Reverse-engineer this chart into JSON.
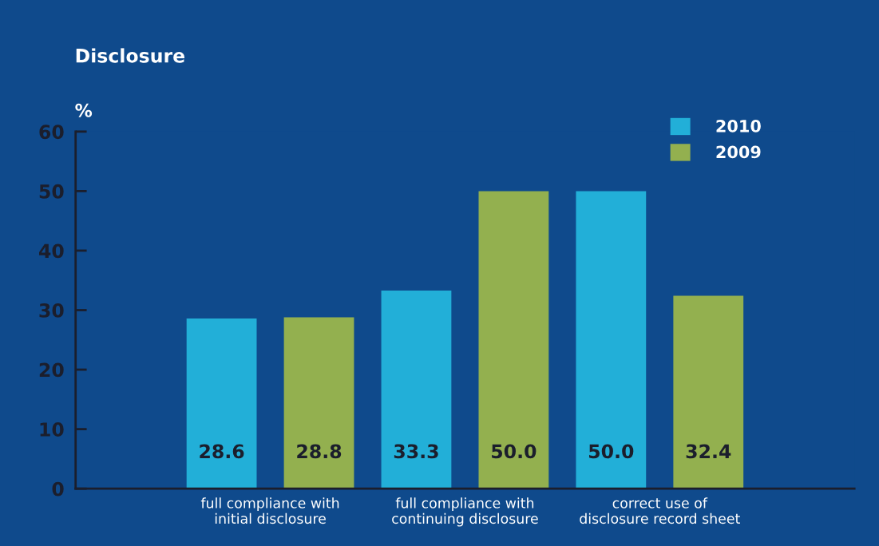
{
  "chart_data": {
    "type": "bar",
    "title": "Disclosure",
    "ylabel": "%",
    "categories": [
      "full compliance with\ninitial disclosure",
      "full compliance with\ncontinuing disclosure",
      "correct use of\ndisclosure record sheet"
    ],
    "series": [
      {
        "name": "2010",
        "color": "#22afd8",
        "values": [
          28.6,
          33.3,
          50.0
        ],
        "value_labels": [
          "28.6",
          "33.3",
          "50.0"
        ]
      },
      {
        "name": "2009",
        "color": "#93b04f",
        "values": [
          28.8,
          50.0,
          32.4
        ],
        "value_labels": [
          "28.8",
          "50.0",
          "32.4"
        ]
      }
    ],
    "ylim": [
      0,
      60
    ],
    "yticks": [
      0,
      10,
      20,
      30,
      40,
      50,
      60
    ],
    "grid": false,
    "legend": "top right"
  }
}
